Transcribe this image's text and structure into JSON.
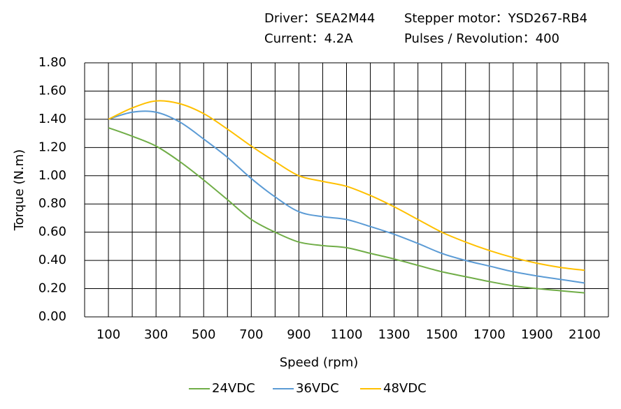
{
  "chart_data": {
    "type": "line",
    "annotations": [
      "Driver：SEA2M44",
      "Stepper motor：YSD267-RB4",
      "Current：4.2A",
      "Pulses / Revolution：400"
    ],
    "x_label": "Speed (rpm)",
    "y_label": "Torque (N.m)",
    "x": [
      100,
      200,
      300,
      400,
      500,
      600,
      700,
      800,
      900,
      1000,
      1100,
      1200,
      1300,
      1400,
      1500,
      1600,
      1700,
      1800,
      1900,
      2000,
      2100
    ],
    "series": [
      {
        "name": "24VDC",
        "color": "#70ad47",
        "values": [
          1.34,
          1.28,
          1.21,
          1.1,
          0.97,
          0.83,
          0.69,
          0.6,
          0.53,
          0.505,
          0.49,
          0.45,
          0.41,
          0.365,
          0.32,
          0.285,
          0.25,
          0.22,
          0.2,
          0.185,
          0.17
        ]
      },
      {
        "name": "36VDC",
        "color": "#5b9bd5",
        "values": [
          1.4,
          1.45,
          1.45,
          1.38,
          1.26,
          1.13,
          0.98,
          0.85,
          0.745,
          0.71,
          0.69,
          0.64,
          0.585,
          0.52,
          0.45,
          0.4,
          0.36,
          0.32,
          0.29,
          0.265,
          0.24
        ]
      },
      {
        "name": "48VDC",
        "color": "#ffc000",
        "values": [
          1.4,
          1.48,
          1.53,
          1.51,
          1.44,
          1.33,
          1.21,
          1.1,
          1.0,
          0.96,
          0.925,
          0.86,
          0.78,
          0.69,
          0.6,
          0.53,
          0.47,
          0.42,
          0.38,
          0.35,
          0.33
        ]
      }
    ],
    "xlim": [
      0,
      2200
    ],
    "xticks": [
      100,
      300,
      500,
      700,
      900,
      1100,
      1300,
      1500,
      1700,
      1900,
      2100
    ],
    "ylim": [
      0,
      1.8
    ],
    "yticks": [
      {
        "value": 0,
        "label": "0.00"
      },
      {
        "value": 0.2,
        "label": "0.20"
      },
      {
        "value": 0.4,
        "label": "0.40"
      },
      {
        "value": 0.6,
        "label": "0.60"
      },
      {
        "value": 0.8,
        "label": "0.80"
      },
      {
        "value": 1.0,
        "label": "1.00"
      },
      {
        "value": 1.2,
        "label": "1.20"
      },
      {
        "value": 1.4,
        "label": "1.40"
      },
      {
        "value": 1.6,
        "label": "1.60"
      },
      {
        "value": 1.8,
        "label": "1.80"
      }
    ],
    "grid": true,
    "legend": "bottom"
  }
}
